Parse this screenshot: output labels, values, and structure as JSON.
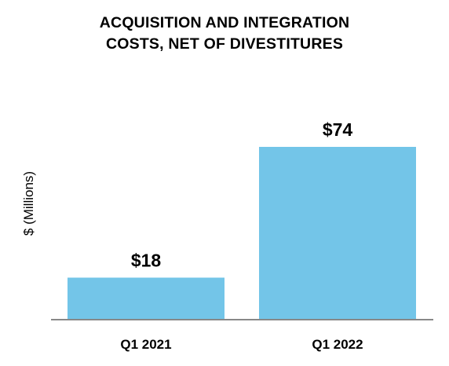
{
  "chart_data": {
    "type": "bar",
    "title_lines": [
      "ACQUISITION AND INTEGRATION",
      "COSTS, NET OF DIVESTITURES"
    ],
    "ylabel": "$ (Millions)",
    "xlabel": "",
    "categories": [
      "Q1 2021",
      "Q1 2022"
    ],
    "values": [
      18,
      74
    ],
    "value_labels": [
      "$18",
      "$74"
    ],
    "ylim": [
      0,
      80
    ],
    "grid": false,
    "bar_color": "#73C5E8",
    "axis_color": "#888888"
  }
}
